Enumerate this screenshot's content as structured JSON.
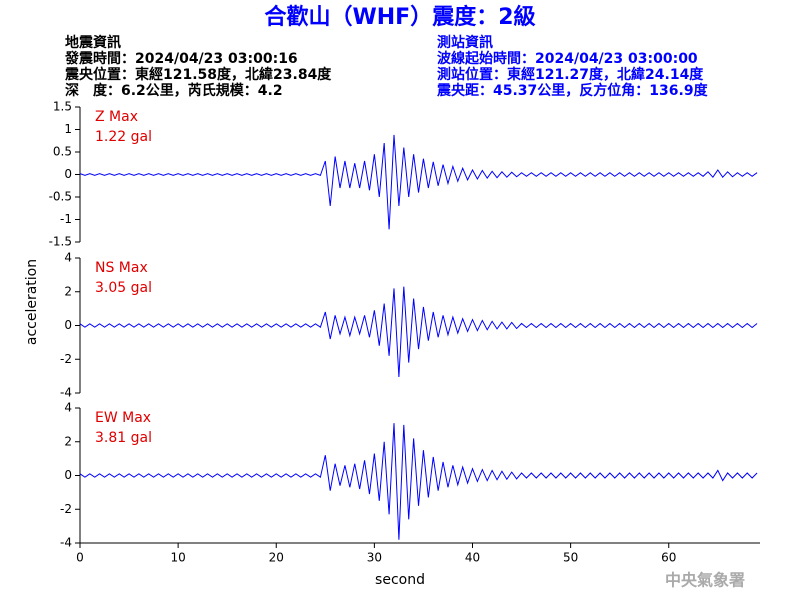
{
  "title": "合歡山（WHF）震度：2級",
  "info_left": [
    "地震資訊",
    "發震時間：2024/04/23 03:00:16",
    "震央位置：東經121.58度，北緯23.84度",
    "深　度：6.2公里，芮氏規模：4.2"
  ],
  "info_right": [
    "測站資訊",
    "波線起始時間：2024/04/23 03:00:00",
    "測站位置：東經121.27度，北緯24.14度",
    "震央距：45.37公里，反方位角：136.9度"
  ],
  "ylabel": "acceleration",
  "watermark": "中央氣象署",
  "chart_data": [
    {
      "type": "line",
      "title": "Z Max",
      "subtitle": "1.22 gal",
      "color": "#0000ff",
      "label_color": "#e00000",
      "xlim": [
        0,
        69.3
      ],
      "ylim": [
        -1.5,
        1.5
      ],
      "yticks": [
        1.5,
        1,
        0.5,
        0,
        -0.5,
        -1,
        -1.5
      ],
      "x": [
        0,
        0.5,
        1,
        1.5,
        2,
        2.5,
        3,
        3.5,
        4,
        4.5,
        5,
        5.5,
        6,
        6.5,
        7,
        7.5,
        8,
        8.5,
        9,
        9.5,
        10,
        10.5,
        11,
        11.5,
        12,
        12.5,
        13,
        13.5,
        14,
        14.5,
        15,
        15.5,
        16,
        16.5,
        17,
        17.5,
        18,
        18.5,
        19,
        19.5,
        20,
        20.5,
        21,
        21.5,
        22,
        22.5,
        23,
        23.5,
        24,
        24.5,
        25,
        25.5,
        26,
        26.5,
        27,
        27.5,
        28,
        28.5,
        29,
        29.5,
        30,
        30.5,
        31,
        31.5,
        32,
        32.5,
        33,
        33.5,
        34,
        34.5,
        35,
        35.5,
        36,
        36.5,
        37,
        37.5,
        38,
        38.5,
        39,
        39.5,
        40,
        40.5,
        41,
        41.5,
        42,
        42.5,
        43,
        43.5,
        44,
        44.5,
        45,
        45.5,
        46,
        46.5,
        47,
        47.5,
        48,
        48.5,
        49,
        49.5,
        50,
        50.5,
        51,
        51.5,
        52,
        52.5,
        53,
        53.5,
        54,
        54.5,
        55,
        55.5,
        56,
        56.5,
        57,
        57.5,
        58,
        58.5,
        59,
        59.5,
        60,
        60.5,
        61,
        61.5,
        62,
        62.5,
        63,
        63.5,
        64,
        64.5,
        65,
        65.5,
        66,
        66.5,
        67,
        67.5,
        68,
        68.5,
        69
      ],
      "values": [
        0.02,
        -0.02,
        0.02,
        -0.02,
        0.02,
        -0.02,
        0.02,
        -0.02,
        0.02,
        -0.02,
        0.02,
        -0.02,
        0.02,
        -0.02,
        0.02,
        -0.02,
        0.02,
        -0.02,
        0.02,
        -0.02,
        0.02,
        -0.02,
        0.02,
        -0.02,
        0.02,
        -0.02,
        0.02,
        -0.02,
        0.02,
        -0.02,
        0.02,
        -0.02,
        0.02,
        -0.02,
        0.02,
        -0.02,
        0.02,
        -0.02,
        0.02,
        -0.02,
        0.02,
        -0.02,
        0.02,
        -0.02,
        0.02,
        -0.02,
        0.02,
        -0.02,
        0.02,
        -0.02,
        0.3,
        -0.7,
        0.4,
        -0.3,
        0.3,
        -0.3,
        0.25,
        -0.3,
        0.3,
        -0.35,
        0.45,
        -0.5,
        0.7,
        -1.22,
        0.88,
        -0.7,
        0.6,
        -0.5,
        0.45,
        -0.4,
        0.35,
        -0.3,
        0.28,
        -0.25,
        0.22,
        -0.2,
        0.18,
        -0.15,
        0.14,
        -0.12,
        0.1,
        -0.1,
        0.09,
        -0.08,
        0.07,
        -0.07,
        0.06,
        -0.06,
        0.05,
        -0.05,
        0.04,
        -0.04,
        0.04,
        -0.04,
        0.04,
        -0.04,
        0.04,
        -0.04,
        0.04,
        -0.04,
        0.04,
        -0.04,
        0.04,
        -0.04,
        0.04,
        -0.04,
        0.04,
        -0.04,
        0.04,
        -0.04,
        0.04,
        -0.04,
        0.04,
        -0.04,
        0.04,
        -0.04,
        0.04,
        -0.04,
        0.04,
        -0.04,
        0.04,
        -0.04,
        0.04,
        -0.04,
        0.04,
        -0.04,
        0.04,
        -0.04,
        0.06,
        -0.06,
        0.1,
        -0.06,
        0.06,
        -0.05,
        0.04,
        -0.04,
        0.04,
        -0.04,
        0.04
      ]
    },
    {
      "type": "line",
      "title": "NS Max",
      "subtitle": "3.05 gal",
      "color": "#0000ff",
      "label_color": "#e00000",
      "xlim": [
        0,
        69.3
      ],
      "ylim": [
        -4,
        4
      ],
      "yticks": [
        4,
        2,
        0,
        -2,
        -4
      ],
      "x": [
        0,
        0.5,
        1,
        1.5,
        2,
        2.5,
        3,
        3.5,
        4,
        4.5,
        5,
        5.5,
        6,
        6.5,
        7,
        7.5,
        8,
        8.5,
        9,
        9.5,
        10,
        10.5,
        11,
        11.5,
        12,
        12.5,
        13,
        13.5,
        14,
        14.5,
        15,
        15.5,
        16,
        16.5,
        17,
        17.5,
        18,
        18.5,
        19,
        19.5,
        20,
        20.5,
        21,
        21.5,
        22,
        22.5,
        23,
        23.5,
        24,
        24.5,
        25,
        25.5,
        26,
        26.5,
        27,
        27.5,
        28,
        28.5,
        29,
        29.5,
        30,
        30.5,
        31,
        31.5,
        32,
        32.5,
        33,
        33.5,
        34,
        34.5,
        35,
        35.5,
        36,
        36.5,
        37,
        37.5,
        38,
        38.5,
        39,
        39.5,
        40,
        40.5,
        41,
        41.5,
        42,
        42.5,
        43,
        43.5,
        44,
        44.5,
        45,
        45.5,
        46,
        46.5,
        47,
        47.5,
        48,
        48.5,
        49,
        49.5,
        50,
        50.5,
        51,
        51.5,
        52,
        52.5,
        53,
        53.5,
        54,
        54.5,
        55,
        55.5,
        56,
        56.5,
        57,
        57.5,
        58,
        58.5,
        59,
        59.5,
        60,
        60.5,
        61,
        61.5,
        62,
        62.5,
        63,
        63.5,
        64,
        64.5,
        65,
        65.5,
        66,
        66.5,
        67,
        67.5,
        68,
        68.5,
        69
      ],
      "values": [
        0.1,
        -0.1,
        0.1,
        -0.1,
        0.1,
        -0.1,
        0.1,
        -0.1,
        0.1,
        -0.1,
        0.1,
        -0.1,
        0.1,
        -0.1,
        0.1,
        -0.1,
        0.1,
        -0.1,
        0.1,
        -0.1,
        0.1,
        -0.1,
        0.1,
        -0.1,
        0.1,
        -0.1,
        0.1,
        -0.1,
        0.1,
        -0.1,
        0.1,
        -0.1,
        0.1,
        -0.1,
        0.1,
        -0.1,
        0.1,
        -0.1,
        0.1,
        -0.1,
        0.1,
        -0.1,
        0.1,
        -0.1,
        0.1,
        -0.1,
        0.1,
        -0.1,
        0.1,
        -0.1,
        0.8,
        -0.8,
        0.6,
        -0.5,
        0.5,
        -0.6,
        0.5,
        -0.5,
        0.6,
        -0.7,
        0.9,
        -1.2,
        1.3,
        -1.8,
        2.2,
        -3.05,
        2.3,
        -2.2,
        1.6,
        -1.4,
        1.1,
        -0.9,
        0.8,
        -0.7,
        0.6,
        -0.55,
        0.5,
        -0.45,
        0.4,
        -0.35,
        0.35,
        -0.3,
        0.3,
        -0.25,
        0.25,
        -0.2,
        0.2,
        -0.2,
        0.18,
        -0.18,
        0.12,
        -0.12,
        0.12,
        -0.12,
        0.12,
        -0.12,
        0.12,
        -0.12,
        0.12,
        -0.12,
        0.12,
        -0.12,
        0.12,
        -0.12,
        0.12,
        -0.12,
        0.12,
        -0.12,
        0.12,
        -0.12,
        0.12,
        -0.12,
        0.12,
        -0.12,
        0.12,
        -0.12,
        0.12,
        -0.12,
        0.12,
        -0.12,
        0.12,
        -0.12,
        0.12,
        -0.12,
        0.12,
        -0.12,
        0.12,
        -0.12,
        0.12,
        -0.12,
        0.12,
        -0.12,
        0.12,
        -0.12,
        0.12,
        -0.12,
        0.12,
        -0.12,
        0.12
      ]
    },
    {
      "type": "line",
      "title": "EW Max",
      "subtitle": "3.81 gal",
      "color": "#0000ff",
      "label_color": "#e00000",
      "xlabel": "second",
      "xlim": [
        0,
        69.3
      ],
      "xticks": [
        0,
        10,
        20,
        30,
        40,
        50,
        60
      ],
      "ylim": [
        -4,
        4
      ],
      "yticks": [
        4,
        2,
        0,
        -2,
        -4
      ],
      "x": [
        0,
        0.5,
        1,
        1.5,
        2,
        2.5,
        3,
        3.5,
        4,
        4.5,
        5,
        5.5,
        6,
        6.5,
        7,
        7.5,
        8,
        8.5,
        9,
        9.5,
        10,
        10.5,
        11,
        11.5,
        12,
        12.5,
        13,
        13.5,
        14,
        14.5,
        15,
        15.5,
        16,
        16.5,
        17,
        17.5,
        18,
        18.5,
        19,
        19.5,
        20,
        20.5,
        21,
        21.5,
        22,
        22.5,
        23,
        23.5,
        24,
        24.5,
        25,
        25.5,
        26,
        26.5,
        27,
        27.5,
        28,
        28.5,
        29,
        29.5,
        30,
        30.5,
        31,
        31.5,
        32,
        32.5,
        33,
        33.5,
        34,
        34.5,
        35,
        35.5,
        36,
        36.5,
        37,
        37.5,
        38,
        38.5,
        39,
        39.5,
        40,
        40.5,
        41,
        41.5,
        42,
        42.5,
        43,
        43.5,
        44,
        44.5,
        45,
        45.5,
        46,
        46.5,
        47,
        47.5,
        48,
        48.5,
        49,
        49.5,
        50,
        50.5,
        51,
        51.5,
        52,
        52.5,
        53,
        53.5,
        54,
        54.5,
        55,
        55.5,
        56,
        56.5,
        57,
        57.5,
        58,
        58.5,
        59,
        59.5,
        60,
        60.5,
        61,
        61.5,
        62,
        62.5,
        63,
        63.5,
        64,
        64.5,
        65,
        65.5,
        66,
        66.5,
        67,
        67.5,
        68,
        68.5,
        69
      ],
      "values": [
        0.1,
        -0.1,
        0.1,
        -0.1,
        0.1,
        -0.1,
        0.1,
        -0.1,
        0.1,
        -0.1,
        0.1,
        -0.1,
        0.1,
        -0.1,
        0.1,
        -0.1,
        0.1,
        -0.1,
        0.1,
        -0.1,
        0.1,
        -0.1,
        0.1,
        -0.1,
        0.1,
        -0.1,
        0.1,
        -0.1,
        0.1,
        -0.1,
        0.1,
        -0.1,
        0.1,
        -0.1,
        0.1,
        -0.1,
        0.1,
        -0.1,
        0.1,
        -0.1,
        0.1,
        -0.1,
        0.1,
        -0.1,
        0.1,
        -0.1,
        0.1,
        -0.1,
        0.1,
        -0.1,
        1.2,
        -0.9,
        0.7,
        -0.6,
        0.6,
        -0.7,
        0.7,
        -0.8,
        0.9,
        -1.1,
        1.3,
        -1.5,
        2.0,
        -2.3,
        3.1,
        -3.81,
        3.0,
        -2.6,
        2.2,
        -1.8,
        1.5,
        -1.3,
        1.1,
        -0.9,
        0.8,
        -0.7,
        0.6,
        -0.55,
        0.5,
        -0.45,
        0.4,
        -0.35,
        0.35,
        -0.3,
        0.3,
        -0.25,
        0.25,
        -0.22,
        0.2,
        -0.2,
        0.15,
        -0.15,
        0.15,
        -0.15,
        0.15,
        -0.15,
        0.15,
        -0.15,
        0.15,
        -0.15,
        0.15,
        -0.15,
        0.15,
        -0.15,
        0.15,
        -0.15,
        0.15,
        -0.15,
        0.15,
        -0.15,
        0.15,
        -0.15,
        0.15,
        -0.15,
        0.15,
        -0.15,
        0.15,
        -0.15,
        0.15,
        -0.15,
        0.15,
        -0.15,
        0.15,
        -0.15,
        0.15,
        -0.15,
        0.15,
        -0.15,
        0.15,
        -0.15,
        0.3,
        -0.3,
        0.15,
        -0.15,
        0.15,
        -0.15,
        0.15,
        -0.15,
        0.15
      ]
    }
  ]
}
